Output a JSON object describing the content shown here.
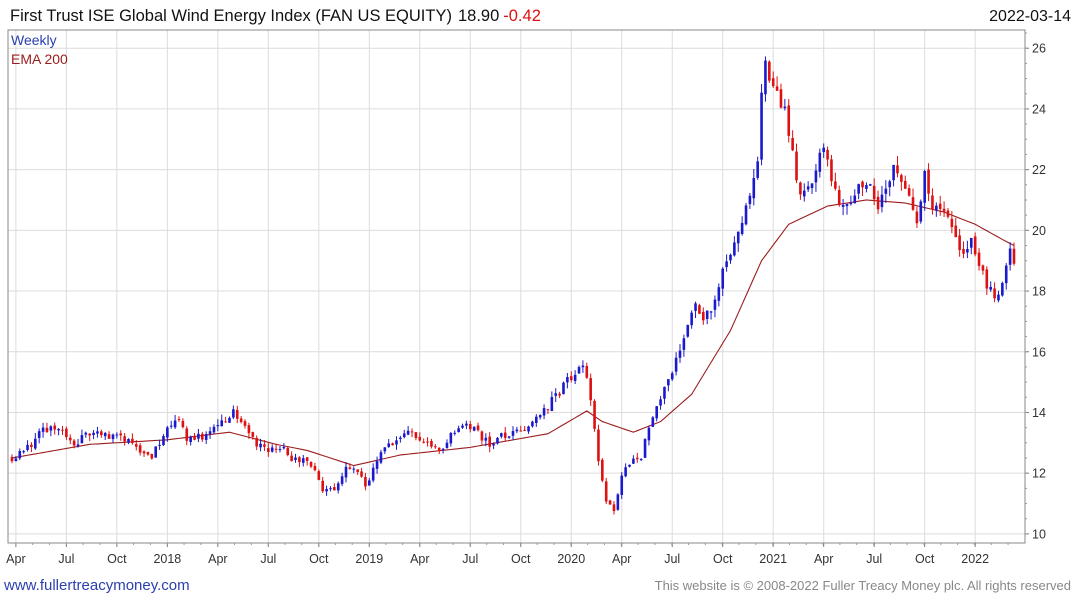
{
  "header": {
    "title": "First Trust ISE Global Wind Energy Index (FAN US EQUITY)",
    "price": "18.90",
    "change": "-0.42",
    "date": "2022-03-14"
  },
  "legend": {
    "weekly": "Weekly",
    "ema": "EMA 200"
  },
  "footer": {
    "left": "www.fullertreacymoney.com",
    "right": "This website is © 2008-2022 Fuller Treacy Money plc. All rights reserved"
  },
  "colors": {
    "up": "#1a1acc",
    "down": "#dd1111",
    "ema": "#9b1c1c",
    "grid": "#dcdcdc",
    "link": "#2a3fb0"
  },
  "chart_data": {
    "type": "candlestick",
    "title": "First Trust ISE Global Wind Energy Index (FAN US EQUITY)",
    "period": "Weekly",
    "ylim": [
      9.7,
      26.6
    ],
    "yticks": [
      10,
      12,
      14,
      16,
      18,
      20,
      22,
      24,
      26
    ],
    "xticks": [
      "Apr",
      "Jul",
      "Oct",
      "2018",
      "Apr",
      "Jul",
      "Oct",
      "2019",
      "Apr",
      "Jul",
      "Oct",
      "2020",
      "Apr",
      "Jul",
      "Oct",
      "2021",
      "Apr",
      "Jul",
      "Oct",
      "2022"
    ],
    "xtick_index": [
      1,
      14,
      27,
      40,
      53,
      66,
      79,
      92,
      105,
      118,
      131,
      144,
      157,
      170,
      183,
      196,
      209,
      222,
      235,
      248
    ],
    "n_weeks": 259,
    "price_anchors": [
      [
        0,
        12.5
      ],
      [
        4,
        12.8
      ],
      [
        8,
        13.4
      ],
      [
        12,
        13.5
      ],
      [
        16,
        13.0
      ],
      [
        20,
        13.3
      ],
      [
        24,
        13.2
      ],
      [
        27,
        13.3
      ],
      [
        30,
        13.0
      ],
      [
        33,
        12.7
      ],
      [
        36,
        12.6
      ],
      [
        38,
        13.0
      ],
      [
        40,
        13.4
      ],
      [
        43,
        13.8
      ],
      [
        45,
        13.0
      ],
      [
        48,
        13.2
      ],
      [
        51,
        13.3
      ],
      [
        54,
        13.6
      ],
      [
        57,
        14.0
      ],
      [
        60,
        13.5
      ],
      [
        63,
        12.9
      ],
      [
        66,
        12.8
      ],
      [
        69,
        12.9
      ],
      [
        72,
        12.5
      ],
      [
        75,
        12.4
      ],
      [
        78,
        12.1
      ],
      [
        80,
        11.5
      ],
      [
        82,
        11.4
      ],
      [
        84,
        11.7
      ],
      [
        86,
        12.1
      ],
      [
        89,
        12.1
      ],
      [
        91,
        11.5
      ],
      [
        93,
        12.2
      ],
      [
        96,
        12.9
      ],
      [
        99,
        13.1
      ],
      [
        102,
        13.3
      ],
      [
        105,
        13.2
      ],
      [
        108,
        12.9
      ],
      [
        111,
        12.8
      ],
      [
        114,
        13.4
      ],
      [
        117,
        13.6
      ],
      [
        120,
        13.3
      ],
      [
        123,
        12.9
      ],
      [
        126,
        13.2
      ],
      [
        129,
        13.4
      ],
      [
        132,
        13.4
      ],
      [
        135,
        13.8
      ],
      [
        138,
        14.2
      ],
      [
        141,
        14.7
      ],
      [
        144,
        15.2
      ],
      [
        147,
        15.5
      ],
      [
        149,
        14.5
      ],
      [
        151,
        12.5
      ],
      [
        153,
        11.0
      ],
      [
        155,
        10.8
      ],
      [
        157,
        12.0
      ],
      [
        159,
        12.4
      ],
      [
        162,
        12.5
      ],
      [
        164,
        13.5
      ],
      [
        166,
        14.3
      ],
      [
        168,
        14.8
      ],
      [
        170,
        15.2
      ],
      [
        172,
        16.2
      ],
      [
        174,
        17.0
      ],
      [
        176,
        17.5
      ],
      [
        178,
        17.2
      ],
      [
        180,
        17.5
      ],
      [
        182,
        18.3
      ],
      [
        184,
        19.0
      ],
      [
        186,
        19.6
      ],
      [
        188,
        20.3
      ],
      [
        190,
        21.2
      ],
      [
        192,
        22.5
      ],
      [
        193,
        24.5
      ],
      [
        194,
        25.5
      ],
      [
        195,
        25.0
      ],
      [
        197,
        24.5
      ],
      [
        199,
        24.0
      ],
      [
        201,
        22.5
      ],
      [
        203,
        21.0
      ],
      [
        205,
        21.5
      ],
      [
        207,
        22.0
      ],
      [
        209,
        22.7
      ],
      [
        211,
        21.6
      ],
      [
        213,
        21.0
      ],
      [
        215,
        20.7
      ],
      [
        217,
        21.2
      ],
      [
        219,
        21.6
      ],
      [
        221,
        21.4
      ],
      [
        223,
        20.8
      ],
      [
        225,
        21.3
      ],
      [
        227,
        22.0
      ],
      [
        229,
        21.5
      ],
      [
        231,
        21.0
      ],
      [
        233,
        20.1
      ],
      [
        235,
        21.8
      ],
      [
        237,
        20.9
      ],
      [
        239,
        20.5
      ],
      [
        241,
        20.4
      ],
      [
        243,
        19.6
      ],
      [
        245,
        19.2
      ],
      [
        247,
        19.6
      ],
      [
        249,
        19.0
      ],
      [
        251,
        18.2
      ],
      [
        253,
        17.7
      ],
      [
        255,
        18.4
      ],
      [
        257,
        19.6
      ],
      [
        258,
        18.9
      ]
    ],
    "ema_anchors": [
      [
        0,
        12.5
      ],
      [
        20,
        12.95
      ],
      [
        40,
        13.1
      ],
      [
        56,
        13.35
      ],
      [
        68,
        12.95
      ],
      [
        76,
        12.75
      ],
      [
        88,
        12.25
      ],
      [
        100,
        12.6
      ],
      [
        118,
        12.85
      ],
      [
        138,
        13.3
      ],
      [
        148,
        14.05
      ],
      [
        152,
        13.7
      ],
      [
        160,
        13.35
      ],
      [
        167,
        13.7
      ],
      [
        175,
        14.6
      ],
      [
        185,
        16.7
      ],
      [
        193,
        19.0
      ],
      [
        200,
        20.2
      ],
      [
        210,
        20.8
      ],
      [
        220,
        21.0
      ],
      [
        230,
        20.9
      ],
      [
        240,
        20.6
      ],
      [
        248,
        20.2
      ],
      [
        255,
        19.7
      ],
      [
        258,
        19.5
      ]
    ],
    "last_close": 18.9,
    "change": -0.42
  }
}
